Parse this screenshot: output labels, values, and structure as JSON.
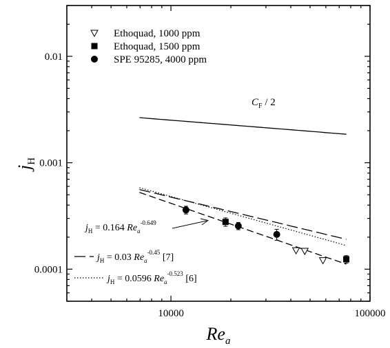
{
  "chart_data": {
    "type": "scatter",
    "xscale": "log",
    "yscale": "log",
    "xlim": [
      3000,
      100000
    ],
    "ylim": [
      5e-05,
      0.03
    ],
    "xlabel": {
      "main": "Re",
      "sub": "a"
    },
    "ylabel": {
      "main": "j",
      "sub": "H"
    },
    "xticks": [
      {
        "value": 10000,
        "label": "10000"
      },
      {
        "value": 100000,
        "label": "100000"
      }
    ],
    "yticks": [
      {
        "value": 0.0001,
        "label": "0.0001"
      },
      {
        "value": 0.001,
        "label": "0.001"
      },
      {
        "value": 0.01,
        "label": "0.01"
      }
    ],
    "grid": false,
    "legend_position": "top-left",
    "series": [
      {
        "name": "Ethoquad, 1000 ppm",
        "marker": "triangle-down-open",
        "points": [
          {
            "x": 42500,
            "y": 0.00015
          },
          {
            "x": 47000,
            "y": 0.000148
          },
          {
            "x": 58000,
            "y": 0.000121
          }
        ]
      },
      {
        "name": "Ethoquad, 1500 ppm",
        "marker": "square-filled",
        "points": [
          {
            "x": 18800,
            "y": 0.000278,
            "err": 2.5e-05
          },
          {
            "x": 76000,
            "y": 0.000124,
            "err": 1e-05
          }
        ]
      },
      {
        "name": "SPE 95285, 4000 ppm",
        "marker": "circle-filled",
        "points": [
          {
            "x": 11900,
            "y": 0.00036,
            "err": 3e-05
          },
          {
            "x": 21800,
            "y": 0.000255,
            "err": 2e-05
          },
          {
            "x": 34000,
            "y": 0.000212,
            "err": 2.5e-05
          }
        ]
      }
    ],
    "curves": [
      {
        "id": "cf",
        "style": "solid",
        "coef": 0.01,
        "exp": -0.15,
        "x": [
          6950,
          76000
        ]
      },
      {
        "id": "fit",
        "style": "dashed",
        "coef": 0.164,
        "exp": -0.649,
        "x": [
          6950,
          76000
        ]
      },
      {
        "id": "ref7",
        "style": "longdash",
        "coef": 0.03,
        "exp": -0.45,
        "x": [
          6950,
          76000
        ]
      },
      {
        "id": "ref6",
        "style": "dotted",
        "coef": 0.0596,
        "exp": -0.523,
        "x": [
          6950,
          76000
        ]
      }
    ],
    "annotations": {
      "cf": {
        "main": "C",
        "sub": "F",
        "tail": " / 2"
      },
      "fit": {
        "pre": "j",
        "presub": "H",
        "mid": " = 0.164 ",
        "re": "Re",
        "resub": "a",
        "sup": "-0.649"
      },
      "ref7": {
        "pre": "j",
        "presub": "H",
        "mid": " = 0.03 ",
        "re": "Re",
        "resub": "a",
        "sup": "-0.45",
        "tail": " [7]"
      },
      "ref6": {
        "pre": "j",
        "presub": "H",
        "mid": " = 0.0596 ",
        "re": "Re",
        "resub": "a",
        "sup": "-0.523",
        "tail": " [6]"
      }
    }
  }
}
